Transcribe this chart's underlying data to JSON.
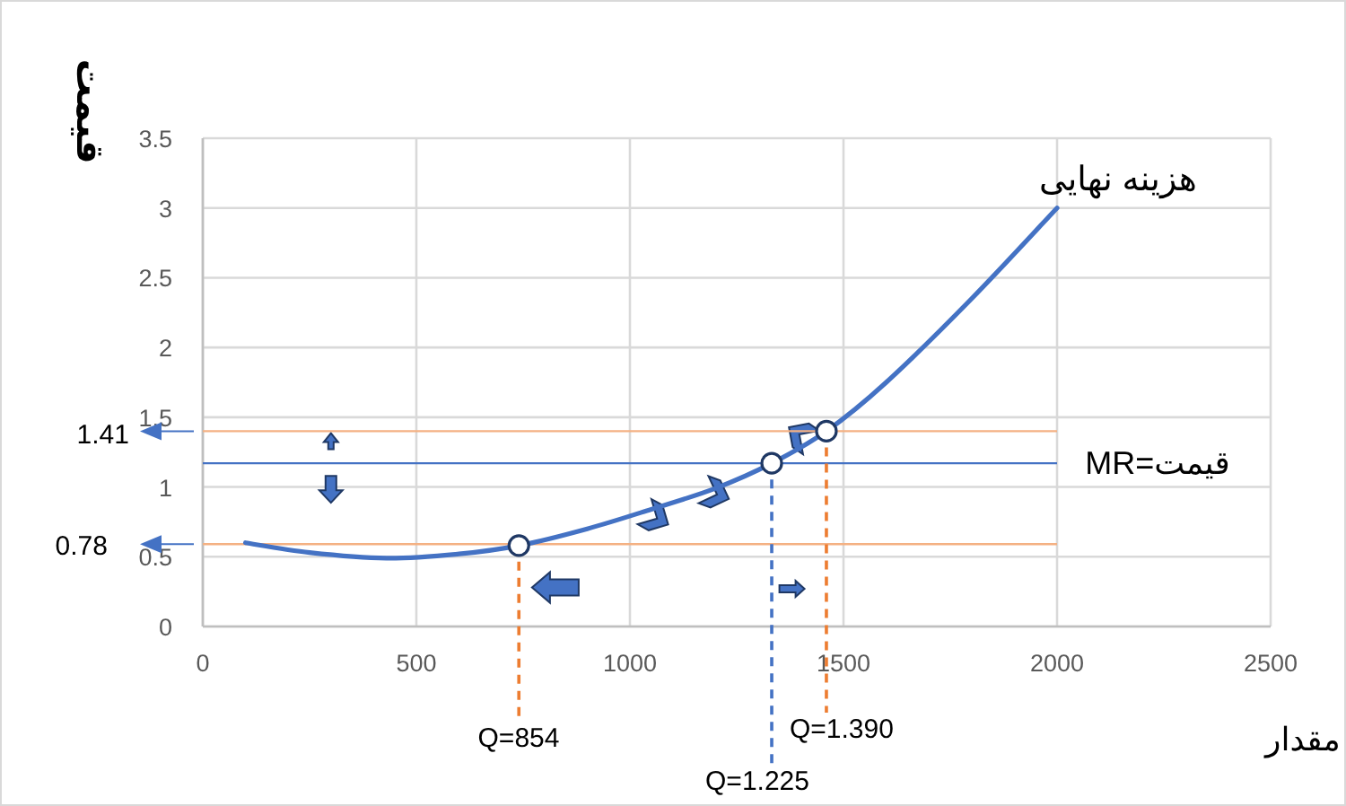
{
  "chart_data": {
    "type": "line",
    "xlabel": "مقدار",
    "ylabel": "قیمت",
    "xlim": [
      0,
      2500
    ],
    "xticks": [
      0,
      500,
      1000,
      1500,
      2000,
      2500
    ],
    "ylim": [
      0,
      3.5
    ],
    "yticks": [
      0,
      0.5,
      1,
      1.5,
      2,
      2.5,
      3,
      3.5
    ],
    "grid": true,
    "series": [
      {
        "name": "هزینه نهایی",
        "color": "#4472c4",
        "marker": "none",
        "x": [
          100,
          250,
          430,
          600,
          740,
          900,
          1050,
          1200,
          1332,
          1460,
          1600,
          1800,
          2000
        ],
        "values": [
          0.6,
          0.53,
          0.49,
          0.52,
          0.58,
          0.7,
          0.84,
          0.99,
          1.17,
          1.4,
          1.75,
          2.35,
          3.0
        ]
      },
      {
        "type": "scatter",
        "color": "#1f3864",
        "marker": "circle",
        "x": [
          740,
          1332,
          1460
        ],
        "values": [
          0.58,
          1.17,
          1.4
        ]
      }
    ],
    "ref_lines": [
      {
        "axis": "y",
        "value": 1.4,
        "color": "#f4b183"
      },
      {
        "axis": "y",
        "value": 1.17,
        "color": "#4472c4"
      },
      {
        "axis": "y",
        "value": 0.59,
        "color": "#f4b183"
      },
      {
        "axis": "x",
        "value": 740,
        "color": "#ed7d31",
        "line_style": "dashed"
      },
      {
        "axis": "x",
        "value": 1332,
        "color": "#4472c4",
        "line_style": "dashed"
      },
      {
        "axis": "x",
        "value": 1460,
        "color": "#ed7d31",
        "line_style": "dashed"
      }
    ],
    "annotations": [
      "قیمت=MR",
      "1.41",
      "0.78",
      "Q=854",
      "Q=1.225",
      "Q=1.390"
    ]
  }
}
